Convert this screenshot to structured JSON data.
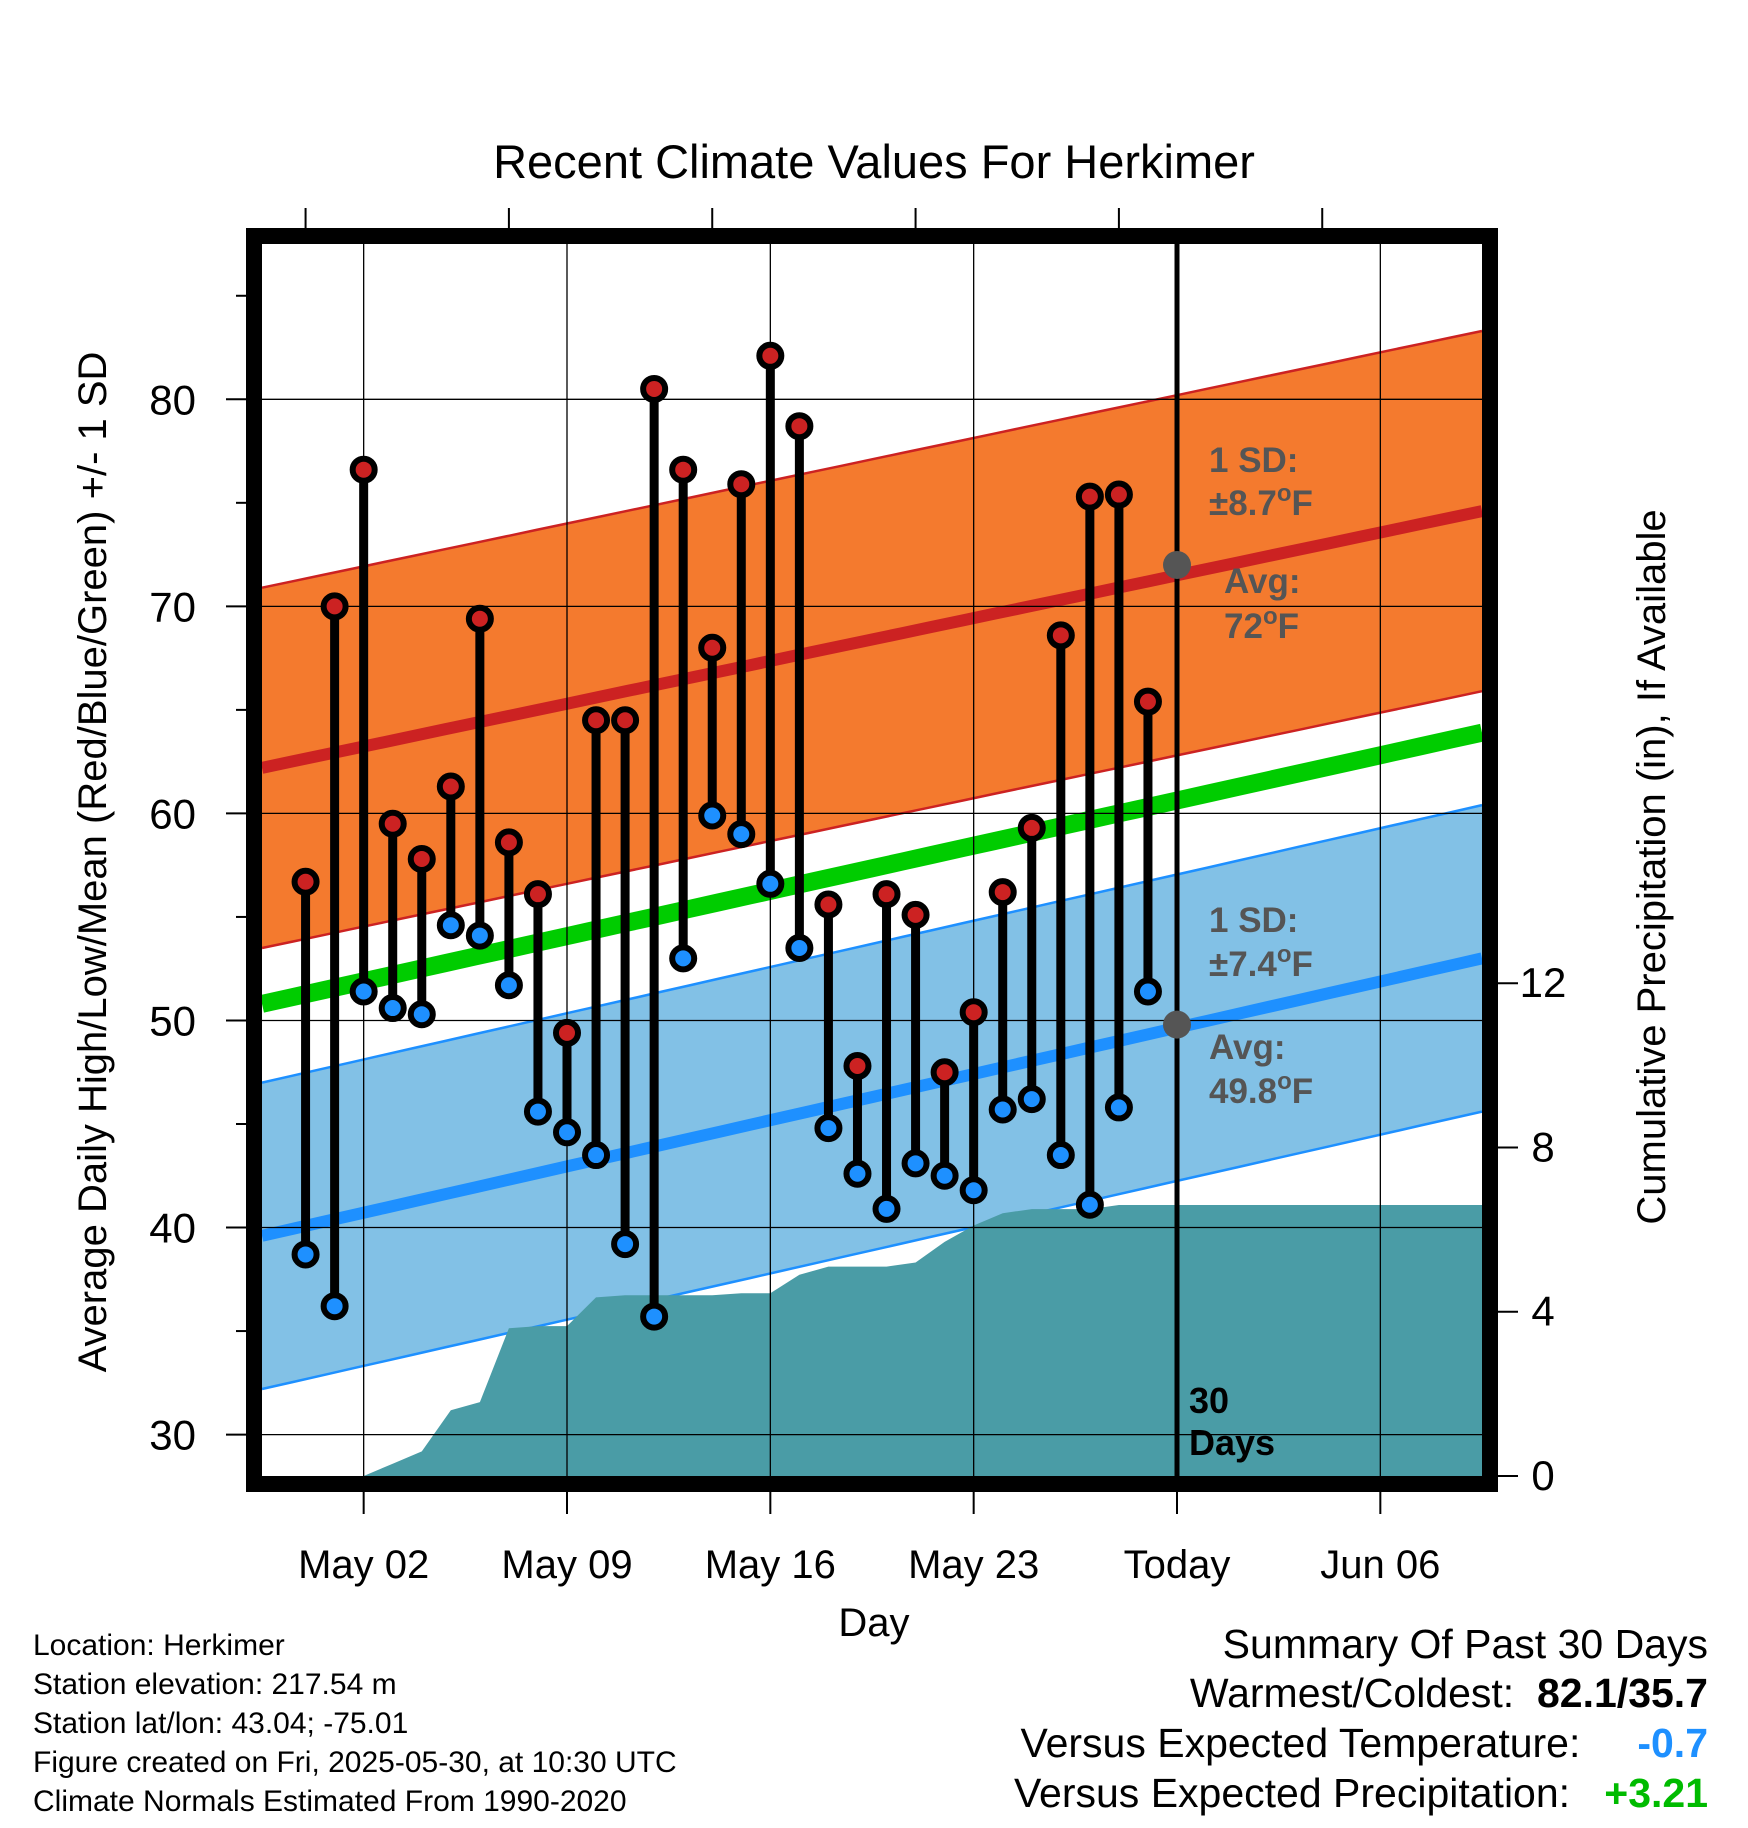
{
  "chart_data": {
    "type": "line",
    "title": "Recent Climate Values For Herkimer",
    "xlabel": "Day",
    "ylabel_left": "Average Daily High/Low/Mean (Red/Blue/Green) +/- 1 SD",
    "ylabel_right": "Cumulative Precipitation (in), If Available",
    "ylim_left": [
      28,
      87.5
    ],
    "ylim_right": [
      0,
      30
    ],
    "x_range_days": [
      -0.5,
      41.5
    ],
    "x_ticks": [
      {
        "label": "May 02",
        "day": 3
      },
      {
        "label": "May 09",
        "day": 10
      },
      {
        "label": "May 16",
        "day": 17
      },
      {
        "label": "May 23",
        "day": 24
      },
      {
        "label": "Today",
        "day": 31
      },
      {
        "label": "Jun 06",
        "day": 38
      }
    ],
    "y_ticks_left": [
      "30",
      "40",
      "50",
      "60",
      "70",
      "80"
    ],
    "y_ticks_right": [
      "0",
      "4",
      "8",
      "12"
    ],
    "today_day": 31,
    "today_label": [
      "30",
      "Days"
    ],
    "days": [
      1,
      2,
      3,
      4,
      5,
      6,
      7,
      8,
      9,
      10,
      11,
      12,
      13,
      14,
      15,
      16,
      17,
      18,
      19,
      20,
      21,
      22,
      23,
      24,
      25,
      26,
      27,
      28,
      29,
      30
    ],
    "series": [
      {
        "name": "High",
        "color": "#cc2222",
        "values": [
          56.7,
          70.0,
          76.6,
          59.5,
          57.8,
          61.3,
          69.4,
          58.6,
          56.1,
          49.4,
          64.5,
          64.5,
          80.5,
          76.6,
          68.0,
          75.9,
          82.1,
          78.7,
          55.6,
          47.8,
          56.1,
          55.1,
          47.5,
          50.4,
          56.2,
          59.3,
          68.6,
          75.3,
          75.4,
          65.4
        ]
      },
      {
        "name": "Low",
        "color": "#1e90ff",
        "values": [
          38.7,
          36.2,
          51.4,
          50.6,
          50.3,
          54.6,
          54.1,
          51.7,
          45.6,
          44.6,
          43.5,
          39.2,
          35.7,
          53.0,
          59.9,
          59.0,
          56.6,
          53.5,
          44.8,
          42.6,
          40.9,
          43.1,
          42.5,
          41.8,
          45.7,
          46.2,
          43.5,
          41.1,
          45.8,
          51.4
        ]
      },
      {
        "name": "Precipitation",
        "color": "#4a9ca6",
        "values": [
          0,
          0,
          0,
          0.3,
          0.6,
          1.6,
          1.8,
          3.6,
          3.65,
          3.65,
          4.35,
          4.4,
          4.4,
          4.4,
          4.4,
          4.45,
          4.45,
          4.9,
          5.1,
          5.1,
          5.1,
          5.2,
          5.7,
          6.1,
          6.4,
          6.5,
          6.5,
          6.5,
          6.6,
          6.6
        ]
      }
    ],
    "normals": {
      "high_avg": {
        "color": "#cc2222",
        "start": 62.2,
        "end": 74.6
      },
      "high_band": {
        "color": "#f47a2e",
        "sd": 8.7
      },
      "low_avg": {
        "color": "#1e90ff",
        "start": 39.6,
        "end": 53.0
      },
      "low_band": {
        "color": "#82c1e6",
        "sd": 7.4
      },
      "mean": {
        "color": "#00cc00",
        "start": 50.8,
        "end": 63.9
      }
    },
    "annotations": {
      "high": {
        "sd_heading": "1 SD:",
        "sd_value": "±8.7",
        "avg_heading": "Avg:",
        "avg_value": "72",
        "unit_o": "o",
        "unit_f": "F",
        "avg_point": 72.0
      },
      "low": {
        "sd_heading": "1 SD:",
        "sd_value": "±7.4",
        "avg_heading": "Avg:",
        "avg_value": "49.8",
        "unit_o": "o",
        "unit_f": "F",
        "avg_point": 49.8
      },
      "color": "#555555"
    }
  },
  "footer": {
    "location": "Location: Herkimer",
    "elevation": "Station elevation: 217.54 m",
    "latlon": "Station lat/lon: 43.04; -75.01",
    "created": "Figure created on Fri, 2025-05-30, at 10:30 UTC",
    "normals": "Climate Normals Estimated From 1990-2020"
  },
  "summary": {
    "heading": "Summary Of Past 30 Days",
    "warm_cold_label": "Warmest/Coldest:",
    "warm_cold_value": "82.1/35.7",
    "temp_label": "Versus Expected Temperature:",
    "temp_value": "-0.7",
    "temp_color": "#1e90ff",
    "precip_label": "Versus Expected Precipitation:",
    "precip_value": "+3.21",
    "precip_color": "#00bb00"
  }
}
